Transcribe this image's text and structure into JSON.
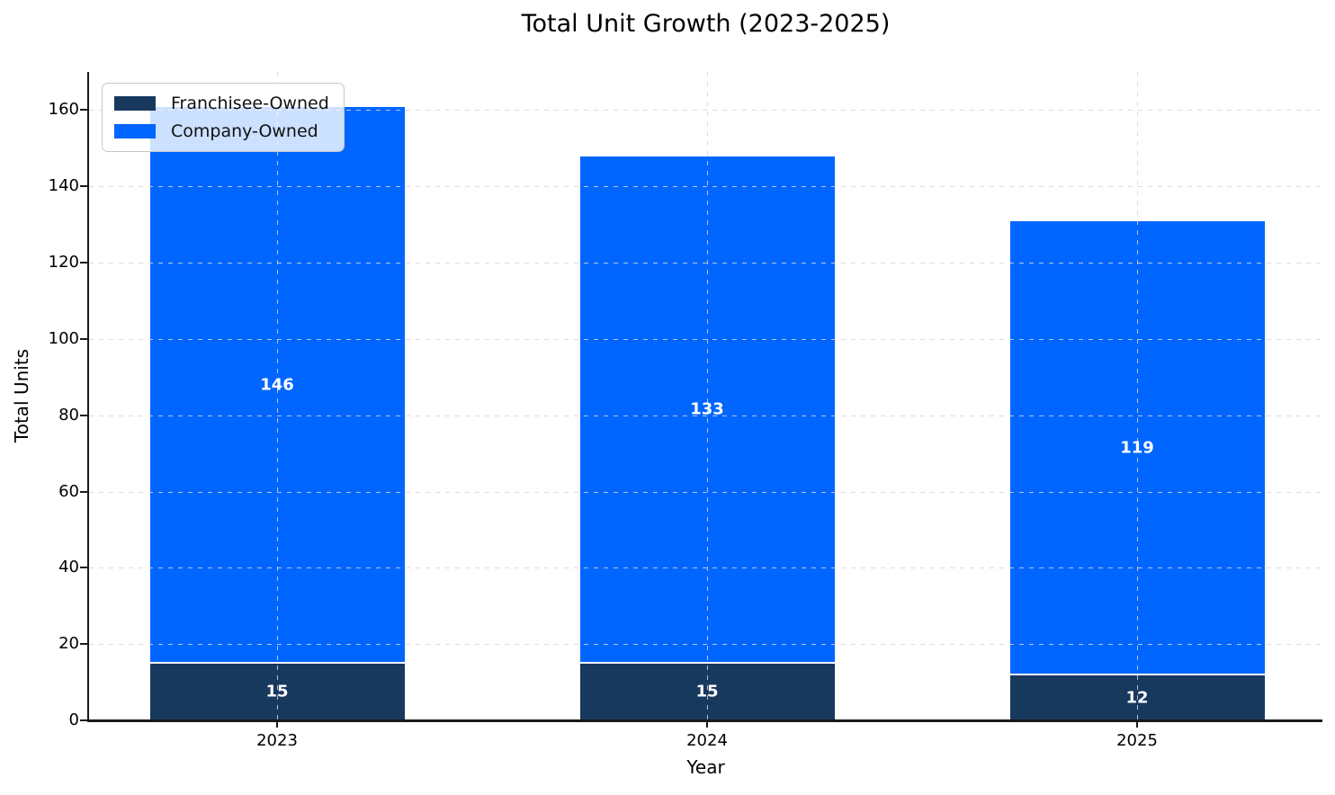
{
  "chart_data": {
    "type": "bar",
    "stacked": true,
    "title": "Total Unit Growth (2023-2025)",
    "xlabel": "Year",
    "ylabel": "Total Units",
    "categories": [
      "2023",
      "2024",
      "2025"
    ],
    "series": [
      {
        "name": "Franchisee-Owned",
        "color": "#17395E",
        "values": [
          15,
          15,
          12
        ]
      },
      {
        "name": "Company-Owned",
        "color": "#0066FF",
        "values": [
          146,
          133,
          119
        ]
      }
    ],
    "totals": [
      161,
      148,
      131
    ],
    "bar_labels_shown": true,
    "bar_label_color": "#FFFFFF",
    "ylim": [
      0,
      170
    ],
    "yticks": [
      0,
      20,
      40,
      60,
      80,
      100,
      120,
      140,
      160
    ],
    "grid": true,
    "grid_style": "dashed",
    "grid_over_bars": true,
    "legend_position": "upper-left",
    "axis_color": "#1A1A1A",
    "background_color": "#FFFFFF"
  }
}
